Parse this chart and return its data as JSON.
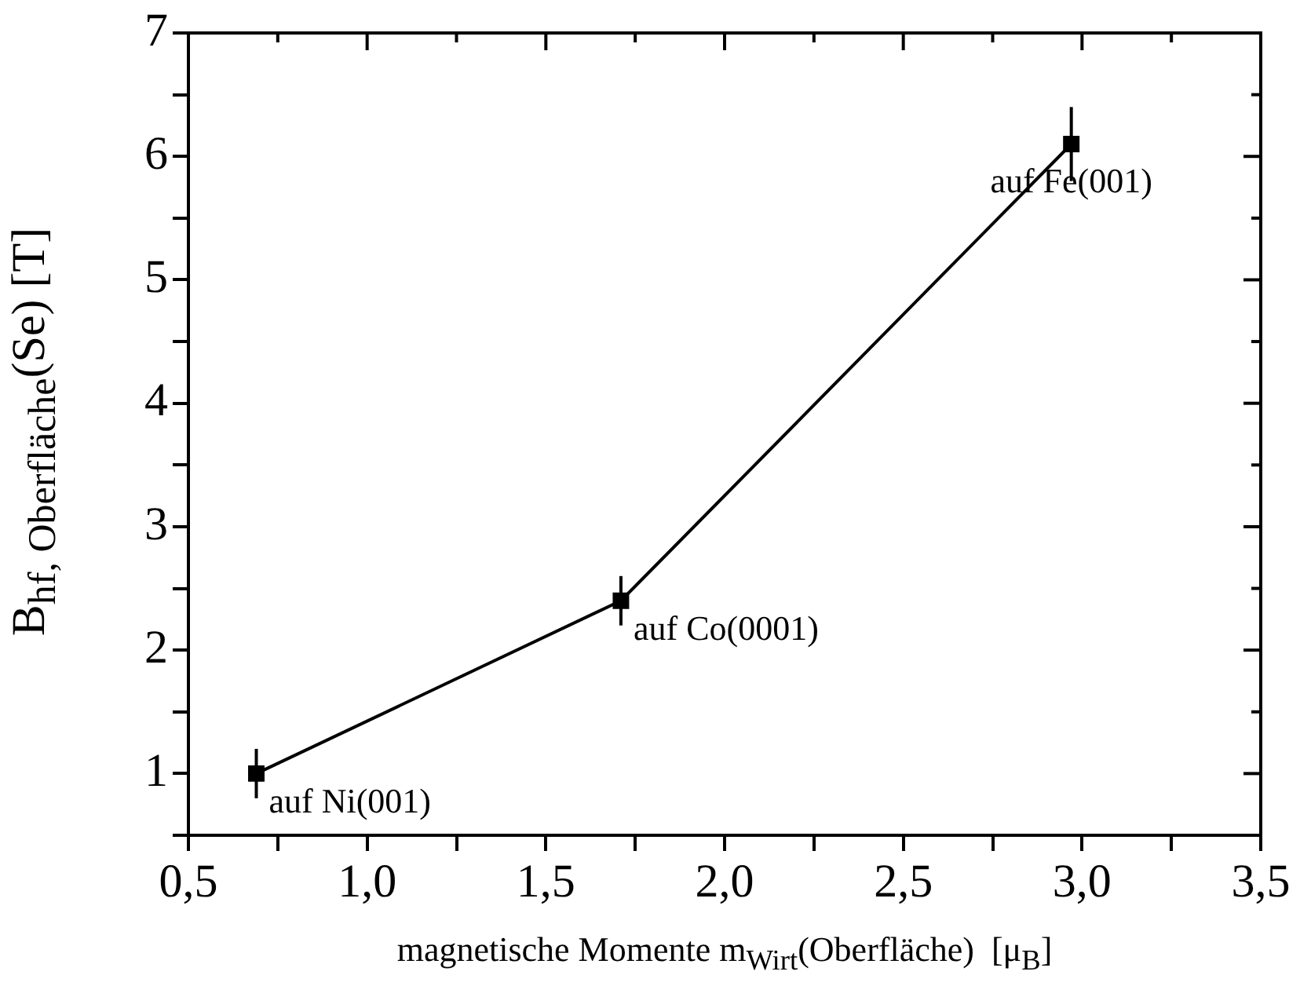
{
  "chart_data": {
    "type": "line",
    "xlabel": "magnetische Momente m$_{Wirt}$(Oberfläche)  [μ$_{B}$]",
    "ylabel": "B$_{hf, Oberfläche}$(Se) [T]",
    "x": [
      0.69,
      1.71,
      2.97
    ],
    "series": [
      {
        "color": "#000000",
        "values": [
          1.0,
          2.4,
          6.1
        ],
        "errors": [
          0.2,
          0.2,
          0.3
        ]
      }
    ],
    "xlim": [
      0.5,
      3.5
    ],
    "ylim": [
      0.5,
      7
    ],
    "xticks": [
      {
        "value": 0.5,
        "label": "0,5"
      },
      {
        "value": 0.75,
        "label": null
      },
      {
        "value": 1.0,
        "label": "1,0"
      },
      {
        "value": 1.25,
        "label": null
      },
      {
        "value": 1.5,
        "label": "1,5"
      },
      {
        "value": 1.75,
        "label": null
      },
      {
        "value": 2.0,
        "label": "2,0"
      },
      {
        "value": 2.25,
        "label": null
      },
      {
        "value": 2.5,
        "label": "2,5"
      },
      {
        "value": 2.75,
        "label": null
      },
      {
        "value": 3.0,
        "label": "3,0"
      },
      {
        "value": 3.25,
        "label": null
      },
      {
        "value": 3.5,
        "label": "3,5"
      }
    ],
    "yticks": [
      {
        "value": 0.5,
        "label": null
      },
      1,
      {
        "value": 1.5,
        "label": null
      },
      2,
      {
        "value": 2.5,
        "label": null
      },
      3,
      {
        "value": 3.5,
        "label": null
      },
      4,
      {
        "value": 4.5,
        "label": null
      },
      5,
      {
        "value": 5.5,
        "label": null
      },
      6,
      {
        "value": 6.5,
        "label": null
      },
      7
    ],
    "annotations": [
      {
        "text": "auf Ni(001)",
        "x": 0.69,
        "y": 1.0
      },
      {
        "text": "auf Co(0001)",
        "x": 1.71,
        "y": 2.4
      },
      {
        "text": "auf Fe(001)",
        "x": 2.97,
        "y": 6.1
      }
    ],
    "grid": false,
    "legend": false,
    "marker": "square",
    "line_style": "solid"
  }
}
